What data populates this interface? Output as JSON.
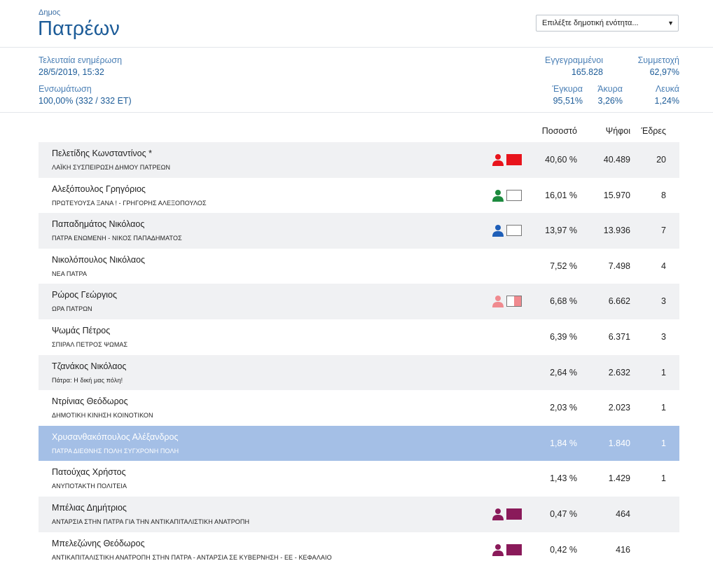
{
  "header": {
    "municipality_label": "Δημος",
    "municipality_name": "Πατρέων",
    "unit_select": {
      "selected": "Επιλέξτε δημοτική ενότητα..."
    }
  },
  "stats": {
    "last_update": {
      "label": "Τελευταία ενημέρωση",
      "value": "28/5/2019, 15:32"
    },
    "incorporation": {
      "label": "Ενσωμάτωση",
      "value": "100,00% (332 / 332 ΕΤ)"
    },
    "registered": {
      "label": "Εγγεγραμμένοι",
      "value": "165.828"
    },
    "turnout": {
      "label": "Συμμετοχή",
      "value": "62,97%"
    },
    "valid": {
      "label": "Έγκυρα",
      "value": "95,51%"
    },
    "invalid": {
      "label": "Άκυρα",
      "value": "3,26%"
    },
    "blank": {
      "label": "Λευκά",
      "value": "1,24%"
    }
  },
  "table": {
    "headers": {
      "percent": "Ποσοστό",
      "votes": "Ψήφοι",
      "seats": "Έδρες"
    },
    "rows": [
      {
        "name": "Πελετίδης Κωνσταντίνος *",
        "party": "ΛΑΪΚΗ ΣΥΣΠΕΙΡΩΣΗ ΔΗΜΟΥ ΠΑΤΡΕΩΝ",
        "percent": "40,60 %",
        "votes": "40.489",
        "seats": "20",
        "color": "#e8141c",
        "flag": "solid"
      },
      {
        "name": "Αλεξόπουλος Γρηγόριος",
        "party": "ΠΡΩΤΕΥΟΥΣΑ ΞΑΝΑ ! - ΓΡΗΓΟΡΗΣ ΑΛΕΞΟΠΟΥΛΟΣ",
        "percent": "16,01 %",
        "votes": "15.970",
        "seats": "8",
        "color": "#1d8a3e",
        "flag": "outline"
      },
      {
        "name": "Παπαδημάτος Νικόλαος",
        "party": "ΠΑΤΡΑ ΕΝΩΜΕΝΗ - ΝΙΚΟΣ ΠΑΠΑΔΗΜΑΤΟΣ",
        "percent": "13,97 %",
        "votes": "13.936",
        "seats": "7",
        "color": "#1f5fb8",
        "flag": "outline"
      },
      {
        "name": "Νικολόπουλος Νικόλαος",
        "party": "ΝΕΑ ΠΑΤΡΑ",
        "percent": "7,52 %",
        "votes": "7.498",
        "seats": "4",
        "color": "",
        "flag": "none"
      },
      {
        "name": "Ρώρος Γεώργιος",
        "party": "ΩΡΑ ΠΑΤΡΩΝ",
        "percent": "6,68 %",
        "votes": "6.662",
        "seats": "3",
        "color": "#f08a8f",
        "flag": "half"
      },
      {
        "name": "Ψωμάς Πέτρος",
        "party": "ΣΠΙΡΑΛ ΠΕΤΡΟΣ ΨΩΜΑΣ",
        "percent": "6,39 %",
        "votes": "6.371",
        "seats": "3",
        "color": "",
        "flag": "none"
      },
      {
        "name": "Τζανάκος Νικόλαος",
        "party": "Πάτρα: Η δική μας πόλη!",
        "percent": "2,64 %",
        "votes": "2.632",
        "seats": "1",
        "color": "",
        "flag": "none"
      },
      {
        "name": "Ντρίνιας Θεόδωρος",
        "party": "ΔΗΜΟΤΙΚΗ ΚΙΝΗΣΗ ΚΟΙΝΟΤΙΚΟΝ",
        "percent": "2,03 %",
        "votes": "2.023",
        "seats": "1",
        "color": "",
        "flag": "none"
      },
      {
        "name": "Χρυσανθακόπουλος Αλέξανδρος",
        "party": "ΠΑΤΡΑ ΔΙΕΘΝΗΣ ΠΟΛΗ ΣΥΓΧΡΟΝΗ ΠΟΛΗ",
        "percent": "1,84 %",
        "votes": "1.840",
        "seats": "1",
        "color": "",
        "flag": "none",
        "highlighted": true
      },
      {
        "name": "Πατούχας Χρήστος",
        "party": "ΑΝΥΠΟΤΑΚΤΗ ΠΟΛΙΤΕΙΑ",
        "percent": "1,43 %",
        "votes": "1.429",
        "seats": "1",
        "color": "",
        "flag": "none"
      },
      {
        "name": "Μπέλιας Δημήτριος",
        "party": "ΑΝΤΑΡΣΙΑ ΣΤΗΝ ΠΑΤΡΑ ΓΙΑ ΤΗΝ ΑΝΤΙΚΑΠΙΤΑΛΙΣΤΙΚΗ ΑΝΑΤΡΟΠΗ",
        "percent": "0,47 %",
        "votes": "464",
        "seats": "",
        "color": "#8a1a5a",
        "flag": "solid"
      },
      {
        "name": "Μπελεζώνης Θεόδωρος",
        "party": "ΑΝΤΙΚΑΠΙΤΑΛΙΣΤΙΚΗ ΑΝΑΤΡΟΠΗ ΣΤΗΝ ΠΑΤΡΑ - ΑΝΤΑΡΣΙΑ ΣΕ ΚΥΒΕΡΝΗΣΗ - ΕΕ - ΚΕΦΑΛΑΙΟ",
        "percent": "0,42 %",
        "votes": "416",
        "seats": "",
        "color": "#8a1a5a",
        "flag": "solid"
      }
    ]
  }
}
